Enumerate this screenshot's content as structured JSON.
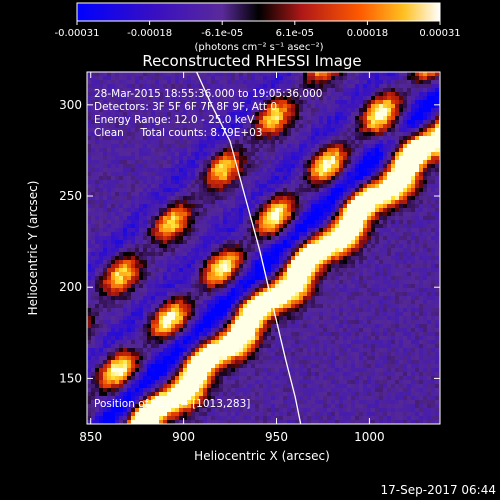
{
  "chart_data": {
    "type": "heatmap",
    "title": "Reconstructed RHESSI Image",
    "xlabel": "Heliocentric X (arcsec)",
    "ylabel": "Heliocentric Y (arcsec)",
    "xlim": [
      848,
      1038
    ],
    "ylim": [
      125,
      318
    ],
    "x_ticks": [
      850,
      900,
      950,
      1000
    ],
    "y_ticks": [
      150,
      200,
      250,
      300
    ],
    "colorbar": {
      "min": -0.00031,
      "max": 0.00031,
      "ticks": [
        "-0.00031",
        "-0.00018",
        "-6.1e-05",
        "6.1e-05",
        "0.00018",
        "0.00031"
      ],
      "unit_label": "(photons cm⁻² s⁻¹ asec⁻²)"
    },
    "annotations": [
      "28-Mar-2015 18:55:36.000 to 19:05:36.000",
      "Detectors: 3F 5F 6F 7F 8F 9F, Att 0",
      "Energy Range: 12.0 - 25.0 keV",
      "Clean     Total counts: 8.79E+03"
    ],
    "peak_label": "Position of Peak = [1013,283]",
    "peak": [
      1013,
      283
    ],
    "grid": false,
    "limb_curve": [
      [
        907,
        318
      ],
      [
        915,
        300
      ],
      [
        925,
        280
      ],
      [
        933,
        250
      ],
      [
        941,
        220
      ],
      [
        948,
        190
      ],
      [
        955,
        160
      ],
      [
        960,
        140
      ],
      [
        963,
        125
      ]
    ],
    "stripes": [
      {
        "x0": 870,
        "y0": 120,
        "slope": 1.0,
        "amp": 1.0
      },
      {
        "x0": 850,
        "y0": 190,
        "slope": 1.05,
        "amp": 0.85
      },
      {
        "x0": 900,
        "y0": 190,
        "slope": 1.0,
        "amp": 1.0
      },
      {
        "x0": 960,
        "y0": 200,
        "slope": 1.0,
        "amp": 1.0
      },
      {
        "x0": 1000,
        "y0": 250,
        "slope": 1.0,
        "amp": 0.9
      }
    ]
  },
  "footer": {
    "date": "17-Sep-2017 06:44"
  }
}
